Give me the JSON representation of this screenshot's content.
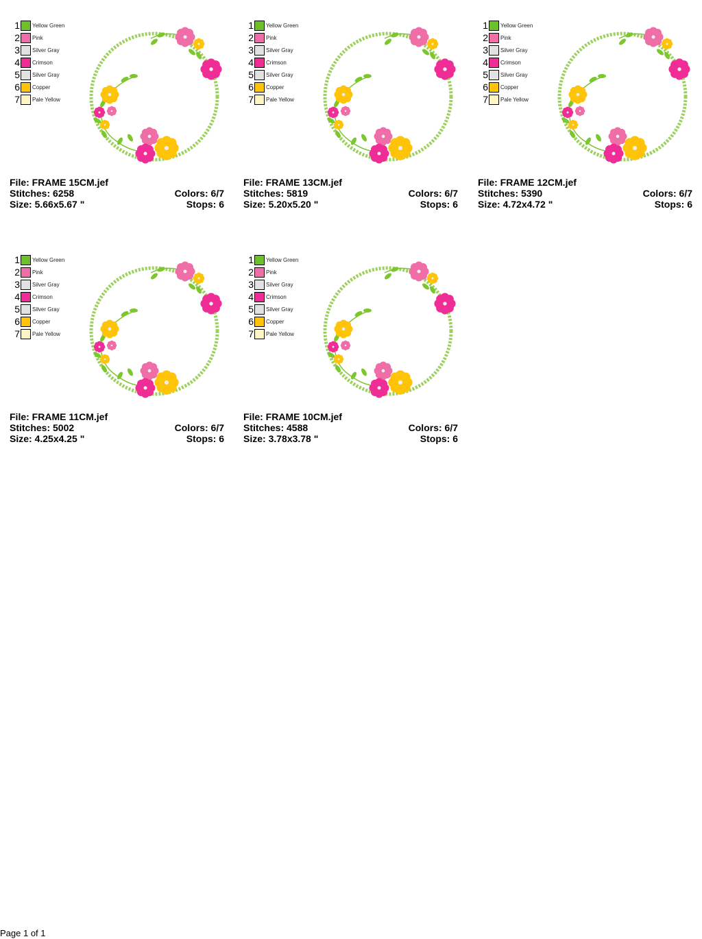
{
  "thread_colors": [
    {
      "num": "1",
      "name": "Yellow Green",
      "hex": "#6cc02a"
    },
    {
      "num": "2",
      "name": "Pink",
      "hex": "#f06ea8"
    },
    {
      "num": "3",
      "name": "Silver Gray",
      "hex": "#e2e2e2"
    },
    {
      "num": "4",
      "name": "Crimson",
      "hex": "#f02c96"
    },
    {
      "num": "5",
      "name": "Silver Gray",
      "hex": "#e2e2e2"
    },
    {
      "num": "6",
      "name": "Copper",
      "hex": "#ffc40a"
    },
    {
      "num": "7",
      "name": "Pale Yellow",
      "hex": "#fff4c4"
    }
  ],
  "designs": [
    {
      "file": "File: FRAME 15CM.jef",
      "stitches": "Stitches: 6258",
      "size": "Size: 5.66x5.67 \"",
      "colors": "Colors: 6/7",
      "stops": "Stops: 6"
    },
    {
      "file": "File: FRAME 13CM.jef",
      "stitches": "Stitches: 5819",
      "size": "Size: 5.20x5.20 \"",
      "colors": "Colors: 6/7",
      "stops": "Stops: 6"
    },
    {
      "file": "File: FRAME 12CM.jef",
      "stitches": "Stitches: 5390",
      "size": "Size: 4.72x4.72 \"",
      "colors": "Colors: 6/7",
      "stops": "Stops: 6"
    },
    {
      "file": "File: FRAME 11CM.jef",
      "stitches": "Stitches: 5002",
      "size": "Size: 4.25x4.25 \"",
      "colors": "Colors: 6/7",
      "stops": "Stops: 6"
    },
    {
      "file": "File: FRAME 10CM.jef",
      "stitches": "Stitches: 4588",
      "size": "Size: 3.78x3.78 \"",
      "colors": "Colors: 6/7",
      "stops": "Stops: 6"
    }
  ],
  "footer": {
    "page": "Page 1 of 1"
  }
}
